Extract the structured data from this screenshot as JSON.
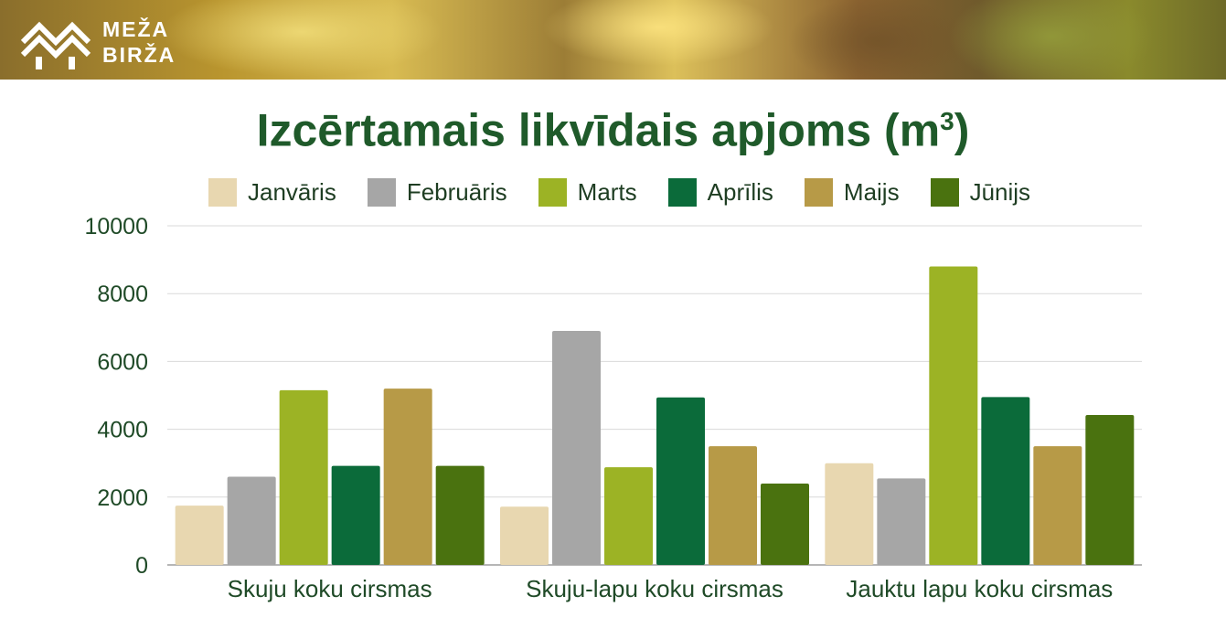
{
  "brand": {
    "line1": "MEŽA",
    "line2": "BIRŽA"
  },
  "title": {
    "main": "Izcērtamais likvīdais apjoms (m",
    "sup": "3",
    "close": ")"
  },
  "colors": {
    "title": "#1f5a2a",
    "axis_text": "#1f4a27",
    "Janvāris": "#e8d7b0",
    "Februāris": "#a6a6a6",
    "Marts": "#9cb325",
    "Aprīlis": "#0b6b3a",
    "Maijs": "#b79a47",
    "Jūnijs": "#4a720f"
  },
  "chart_data": {
    "type": "bar",
    "title": "Izcērtamais likvīdais apjoms (m³)",
    "categories": [
      "Skuju koku cirsmas",
      "Skuju-lapu koku cirsmas",
      "Jauktu lapu koku cirsmas"
    ],
    "series": [
      {
        "name": "Janvāris",
        "values": [
          1750,
          1720,
          3000
        ]
      },
      {
        "name": "Februāris",
        "values": [
          2600,
          6900,
          2550
        ]
      },
      {
        "name": "Marts",
        "values": [
          5150,
          2880,
          8800
        ]
      },
      {
        "name": "Aprīlis",
        "values": [
          2920,
          4940,
          4950
        ]
      },
      {
        "name": "Maijs",
        "values": [
          5200,
          3500,
          3500
        ]
      },
      {
        "name": "Jūnijs",
        "values": [
          2920,
          2400,
          4420
        ]
      }
    ],
    "ylim": [
      0,
      10000
    ],
    "yticks": [
      0,
      2000,
      4000,
      6000,
      8000,
      10000
    ],
    "grid": true,
    "legend": "top"
  }
}
